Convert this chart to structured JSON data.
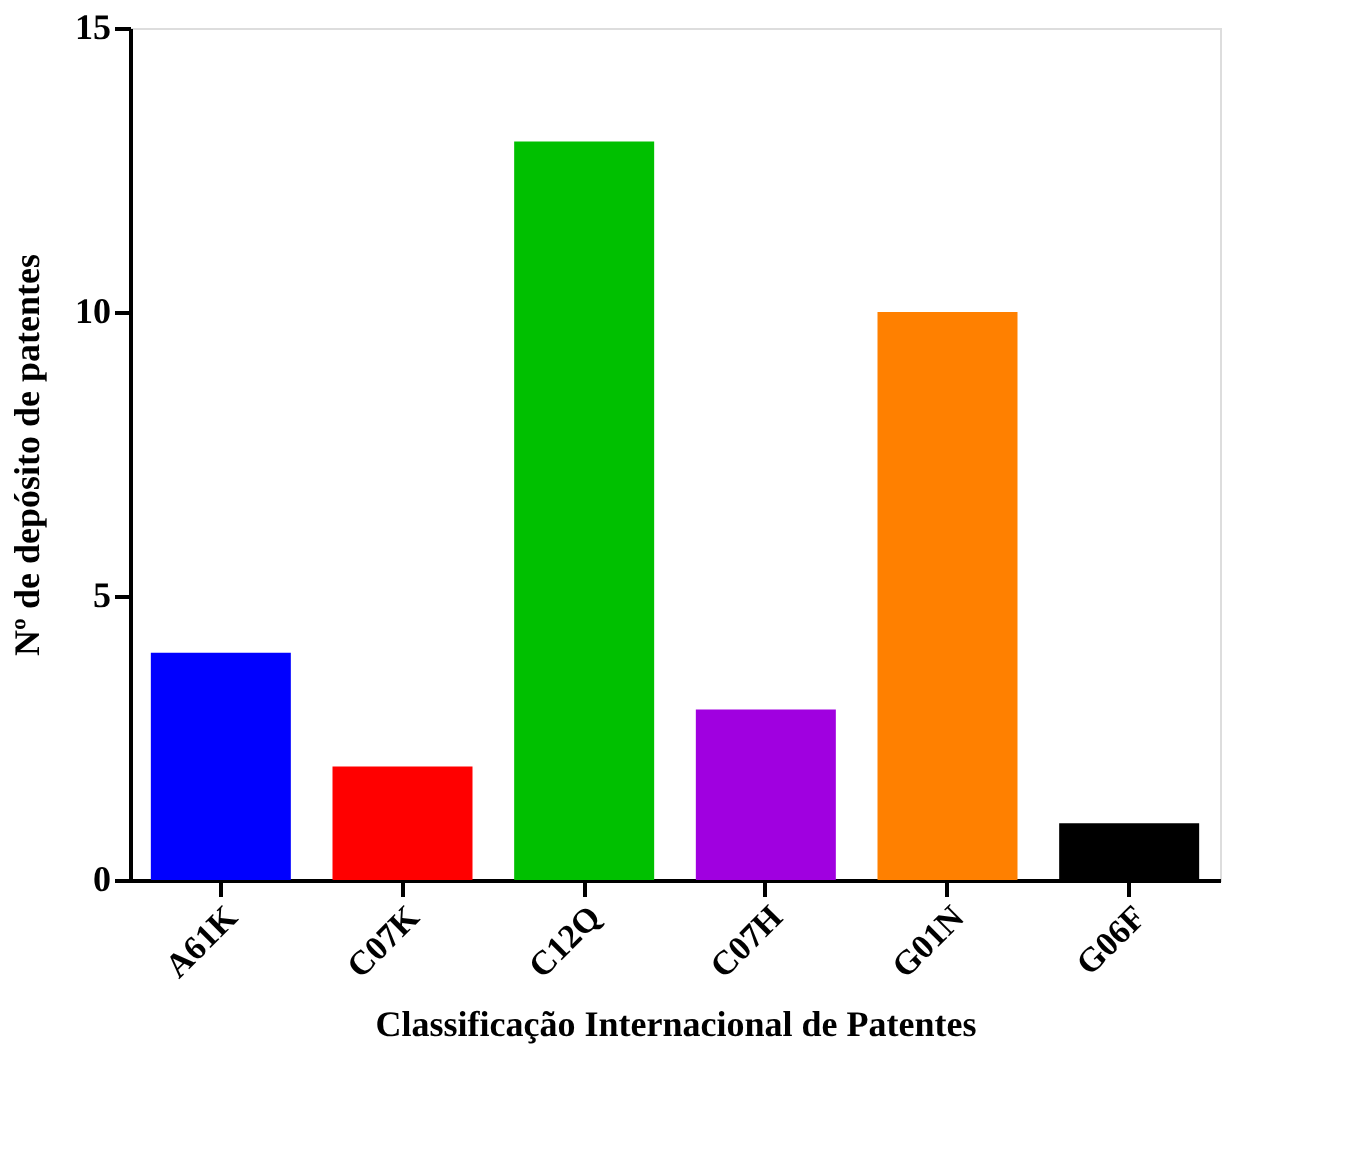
{
  "chart_data": {
    "type": "bar",
    "categories": [
      "A61K",
      "C07K",
      "C12Q",
      "C07H",
      "G01N",
      "G06F"
    ],
    "values": [
      4,
      2,
      13,
      3,
      10,
      1
    ],
    "colors": [
      "#0000ff",
      "#ff0000",
      "#00c000",
      "#a000e0",
      "#ff8000",
      "#000000"
    ],
    "xlabel": "Classificação Internacional de Patentes",
    "ylabel": "Nº de depósito de patentes",
    "ylim": [
      0,
      15
    ],
    "yticks": [
      0,
      5,
      10,
      15
    ],
    "grid": false,
    "legend": false
  }
}
